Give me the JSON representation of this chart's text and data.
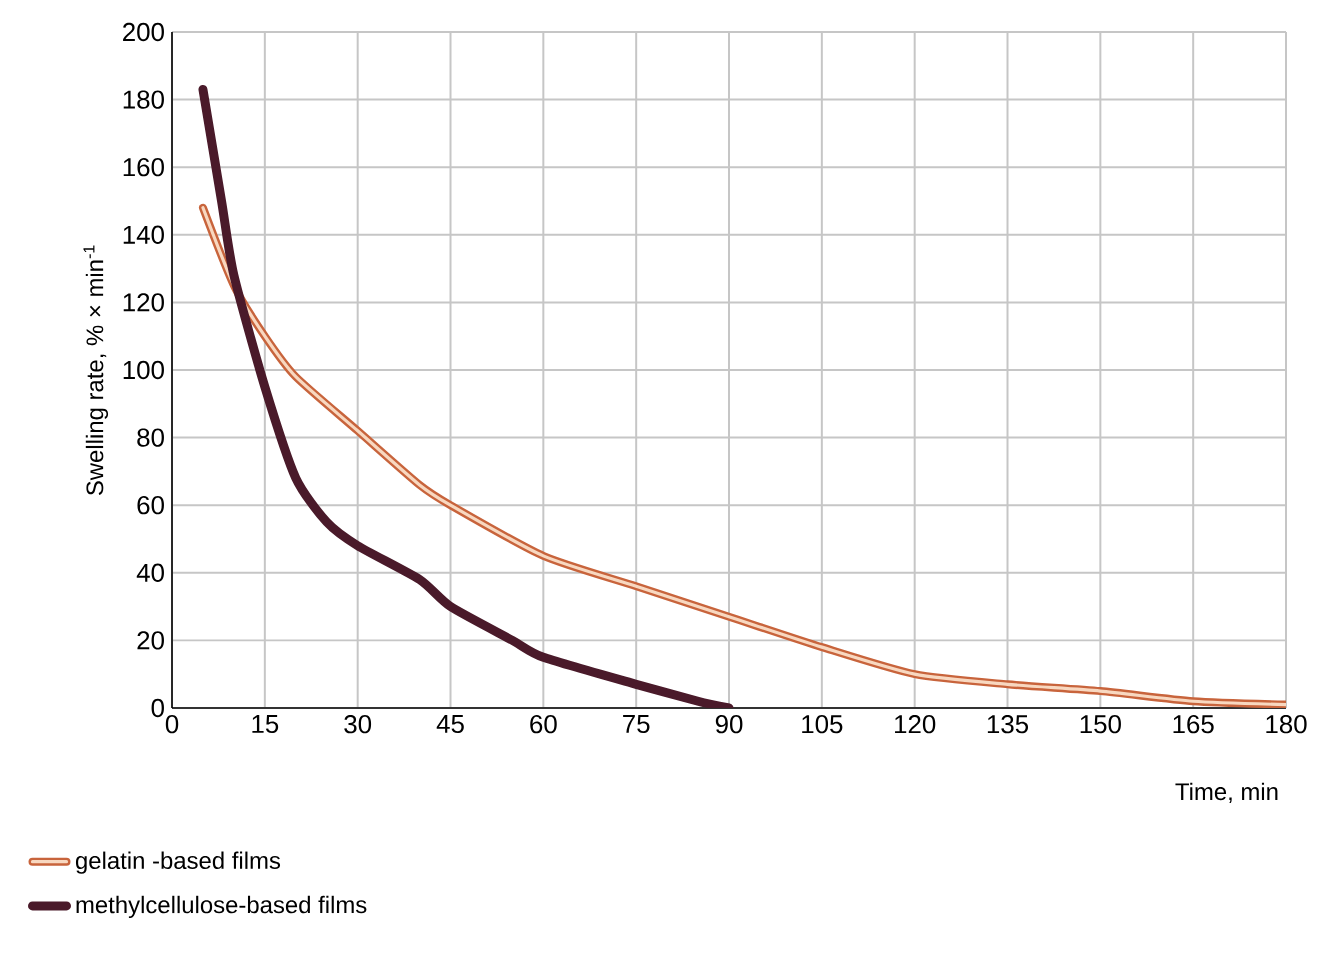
{
  "chart_data": {
    "type": "line",
    "xlabel": "Time, min",
    "ylabel": "Swelling rate, % × min$^{-1}$",
    "xlim": [
      0,
      180
    ],
    "ylim": [
      0,
      200
    ],
    "xticks": [
      0,
      15,
      30,
      45,
      60,
      75,
      90,
      105,
      120,
      135,
      150,
      165,
      180
    ],
    "yticks": [
      0,
      20,
      40,
      60,
      80,
      100,
      120,
      140,
      160,
      180,
      200
    ],
    "grid": true,
    "legend": "bottom",
    "line_style": "solid",
    "marker": "none",
    "series": [
      {
        "name": "gelatin -based films",
        "color": "#c8643c",
        "x": [
          5,
          10,
          15,
          20,
          30,
          40,
          45,
          60,
          75,
          90,
          105,
          120,
          135,
          150,
          165,
          180
        ],
        "values": [
          148,
          125,
          110,
          98,
          82,
          66,
          60,
          45,
          36,
          27,
          18,
          10,
          7,
          5,
          2,
          1
        ]
      },
      {
        "name": "methylcellulose-based films",
        "color": "#4a1a2a",
        "x": [
          5,
          8,
          10,
          15,
          20,
          25,
          30,
          40,
          45,
          55,
          60,
          75,
          85,
          90
        ],
        "values": [
          183,
          150,
          128,
          95,
          68,
          55,
          48,
          38,
          30,
          20,
          15,
          7,
          2,
          0
        ]
      }
    ]
  }
}
